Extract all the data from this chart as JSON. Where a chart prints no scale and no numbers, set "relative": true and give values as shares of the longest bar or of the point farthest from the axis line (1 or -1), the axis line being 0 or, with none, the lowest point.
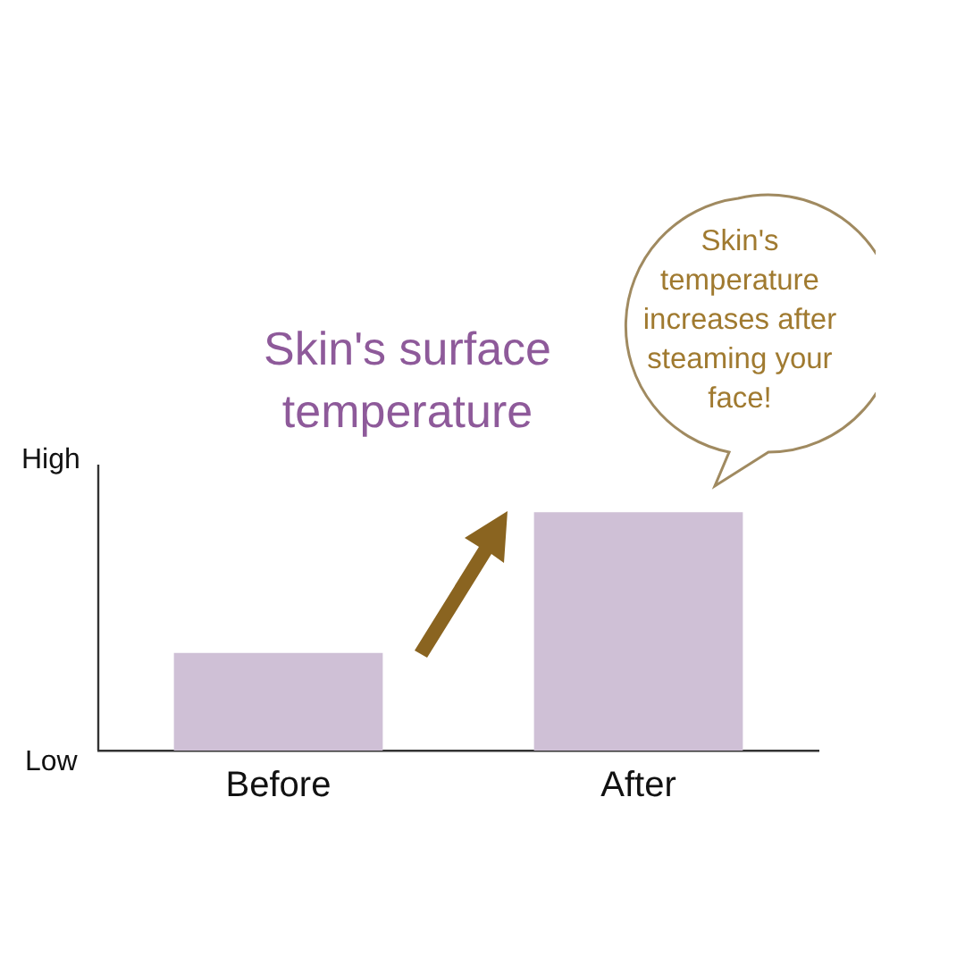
{
  "chart_data": {
    "type": "bar",
    "title": "Skin's surface temperature",
    "categories": [
      "Before",
      "After"
    ],
    "values": [
      0.41,
      1
    ],
    "color": "#cfc0d6",
    "relative": true,
    "grid": false,
    "legend": false,
    "annotations": [
      "High",
      "Low",
      "Skin's temperature increases after steaming your face!"
    ]
  }
}
